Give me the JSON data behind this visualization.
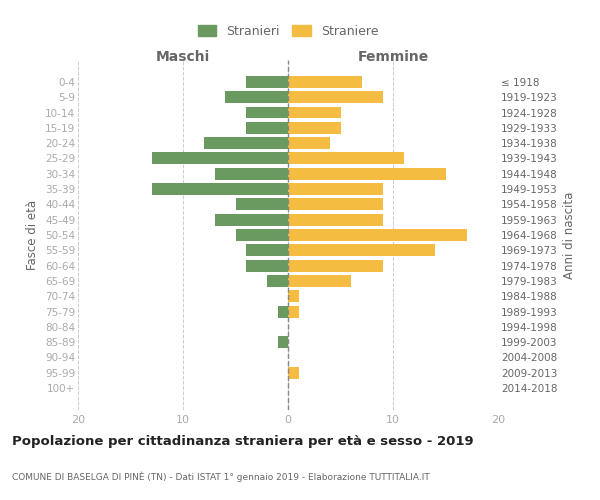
{
  "age_groups": [
    "0-4",
    "5-9",
    "10-14",
    "15-19",
    "20-24",
    "25-29",
    "30-34",
    "35-39",
    "40-44",
    "45-49",
    "50-54",
    "55-59",
    "60-64",
    "65-69",
    "70-74",
    "75-79",
    "80-84",
    "85-89",
    "90-94",
    "95-99",
    "100+"
  ],
  "birth_years": [
    "2014-2018",
    "2009-2013",
    "2004-2008",
    "1999-2003",
    "1994-1998",
    "1989-1993",
    "1984-1988",
    "1979-1983",
    "1974-1978",
    "1969-1973",
    "1964-1968",
    "1959-1963",
    "1954-1958",
    "1949-1953",
    "1944-1948",
    "1939-1943",
    "1934-1938",
    "1929-1933",
    "1924-1928",
    "1919-1923",
    "≤ 1918"
  ],
  "maschi": [
    4,
    6,
    4,
    4,
    8,
    13,
    7,
    13,
    5,
    7,
    5,
    4,
    4,
    2,
    0,
    1,
    0,
    1,
    0,
    0,
    0
  ],
  "femmine": [
    7,
    9,
    5,
    5,
    4,
    11,
    15,
    9,
    9,
    9,
    17,
    14,
    9,
    6,
    1,
    1,
    0,
    0,
    0,
    1,
    0
  ],
  "color_maschi": "#6a9a5f",
  "color_femmine": "#f5bc42",
  "title": "Popolazione per cittadinanza straniera per età e sesso - 2019",
  "subtitle": "COMUNE DI BASELGA DI PINÈ (TN) - Dati ISTAT 1° gennaio 2019 - Elaborazione TUTTITALIA.IT",
  "ylabel_left": "Fasce di età",
  "ylabel_right": "Anni di nascita",
  "xlabel_maschi": "Maschi",
  "xlabel_femmine": "Femmine",
  "legend_maschi": "Stranieri",
  "legend_femmine": "Straniere",
  "xlim": 20,
  "background_color": "#ffffff",
  "grid_color": "#cccccc",
  "tick_color": "#aaaaaa",
  "label_color": "#666666"
}
